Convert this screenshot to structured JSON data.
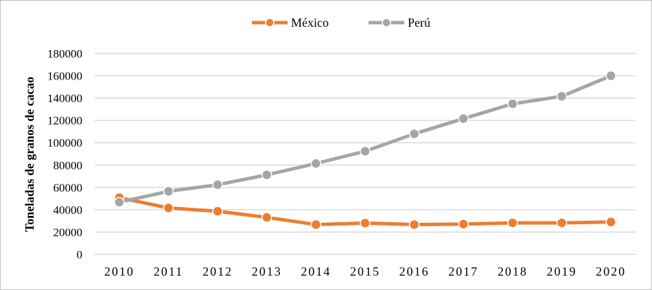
{
  "chart_data": {
    "type": "line",
    "title": "",
    "xlabel": "",
    "ylabel": "Toneladas de granos de cacao",
    "categories": [
      "2010",
      "2011",
      "2012",
      "2013",
      "2014",
      "2015",
      "2016",
      "2017",
      "2018",
      "2019",
      "2020"
    ],
    "ylim": [
      0,
      180000
    ],
    "yticks": [
      "0",
      "20000",
      "40000",
      "60000",
      "80000",
      "100000",
      "120000",
      "140000",
      "160000",
      "180000"
    ],
    "grid": true,
    "legend": "top",
    "series": [
      {
        "name": "México",
        "color": "#ed7d31",
        "values": [
          50800,
          41600,
          38600,
          33100,
          26700,
          28000,
          26700,
          27100,
          28200,
          28200,
          29000
        ]
      },
      {
        "name": "Perú",
        "color": "#a5a5a5",
        "values": [
          46700,
          56500,
          62400,
          71200,
          81400,
          92400,
          108000,
          121600,
          134900,
          141600,
          160000
        ]
      }
    ]
  }
}
